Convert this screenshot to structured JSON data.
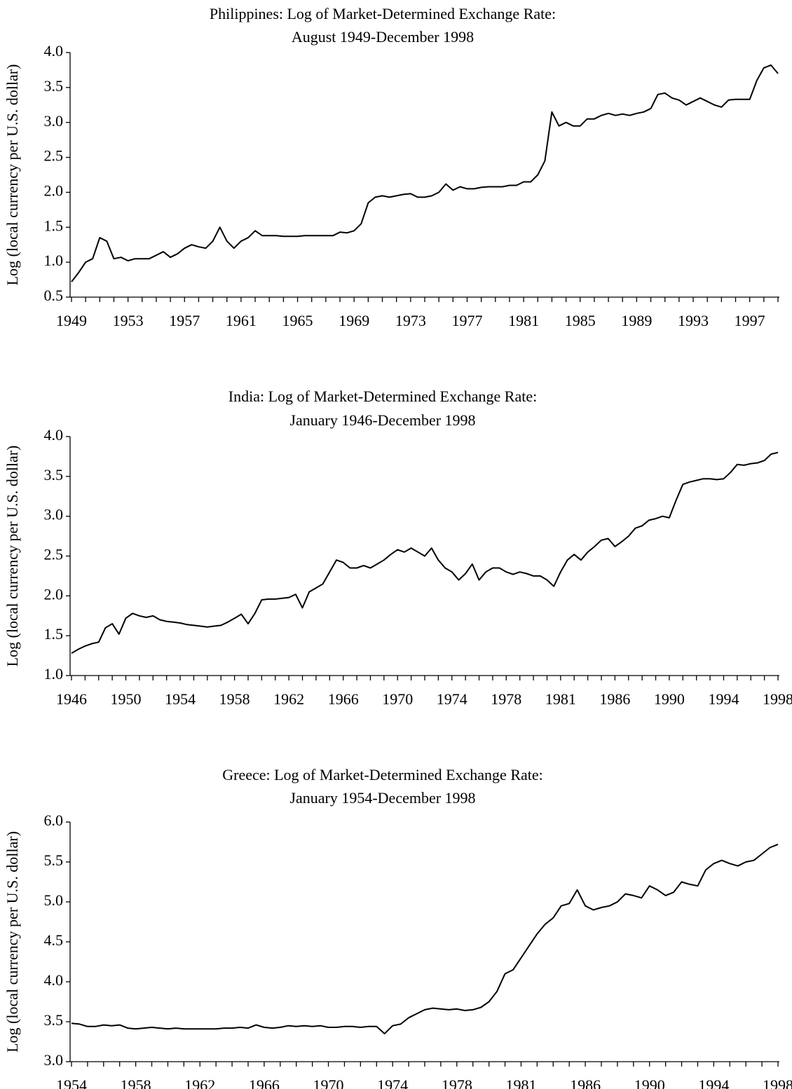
{
  "chart_data": [
    {
      "type": "line",
      "title": "Philippines: Log of Market-Determined Exchange Rate:",
      "subtitle": "August 1949-December 1998",
      "y_label": "Log (local currency per U.S. dollar)",
      "color": "#000000",
      "categories": [
        "1949",
        null,
        null,
        null,
        null,
        null,
        null,
        null,
        "1953",
        null,
        null,
        null,
        null,
        null,
        null,
        null,
        "1957",
        null,
        null,
        null,
        null,
        null,
        null,
        null,
        "1961",
        null,
        null,
        null,
        null,
        null,
        null,
        null,
        "1965",
        null,
        null,
        null,
        null,
        null,
        null,
        null,
        "1969",
        null,
        null,
        null,
        null,
        null,
        null,
        null,
        "1973",
        null,
        null,
        null,
        null,
        null,
        null,
        null,
        "1977",
        null,
        null,
        null,
        null,
        null,
        null,
        null,
        "1981",
        null,
        null,
        null,
        null,
        null,
        null,
        null,
        "1985",
        null,
        null,
        null,
        null,
        null,
        null,
        null,
        "1989",
        null,
        null,
        null,
        null,
        null,
        null,
        null,
        "1993",
        null,
        null,
        null,
        null,
        null,
        null,
        null,
        "1997",
        null,
        null,
        null,
        null
      ],
      "values": [
        0.72,
        0.85,
        1.0,
        1.05,
        1.35,
        1.3,
        1.05,
        1.07,
        1.02,
        1.05,
        1.05,
        1.05,
        1.1,
        1.15,
        1.07,
        1.12,
        1.2,
        1.25,
        1.22,
        1.2,
        1.3,
        1.5,
        1.3,
        1.2,
        1.3,
        1.35,
        1.45,
        1.38,
        1.38,
        1.38,
        1.37,
        1.37,
        1.37,
        1.38,
        1.38,
        1.38,
        1.38,
        1.38,
        1.43,
        1.42,
        1.45,
        1.55,
        1.85,
        1.93,
        1.95,
        1.93,
        1.95,
        1.97,
        1.98,
        1.93,
        1.93,
        1.95,
        2.0,
        2.12,
        2.03,
        2.08,
        2.05,
        2.05,
        2.07,
        2.08,
        2.08,
        2.08,
        2.1,
        2.1,
        2.15,
        2.15,
        2.25,
        2.45,
        3.15,
        2.95,
        3.0,
        2.95,
        2.95,
        3.05,
        3.05,
        3.1,
        3.13,
        3.1,
        3.12,
        3.1,
        3.13,
        3.15,
        3.2,
        3.4,
        3.42,
        3.35,
        3.32,
        3.25,
        3.3,
        3.35,
        3.3,
        3.25,
        3.22,
        3.32,
        3.33,
        3.33,
        3.33,
        3.6,
        3.78,
        3.82,
        3.7
      ],
      "ylim": [
        0.5,
        4
      ],
      "yticks": [
        0.5,
        {
          "value": 1,
          "label": "1.0"
        },
        1.5,
        {
          "value": 2,
          "label": "2.0"
        },
        2.5,
        {
          "value": 3,
          "label": "3.0"
        },
        3.5,
        {
          "value": 4,
          "label": "4.0"
        }
      ]
    },
    {
      "type": "line",
      "title": "India: Log of Market-Determined Exchange Rate:",
      "subtitle": "January 1946-December 1998",
      "y_label": "Log (local currency per U.S. dollar)",
      "color": "#000000",
      "categories": [
        "1946",
        null,
        null,
        null,
        null,
        null,
        null,
        null,
        "1950",
        null,
        null,
        null,
        null,
        null,
        null,
        null,
        "1954",
        null,
        null,
        null,
        null,
        null,
        null,
        null,
        "1958",
        null,
        null,
        null,
        null,
        null,
        null,
        null,
        "1962",
        null,
        null,
        null,
        null,
        null,
        null,
        null,
        "1966",
        null,
        null,
        null,
        null,
        null,
        null,
        null,
        "1970",
        null,
        null,
        null,
        null,
        null,
        null,
        null,
        "1974",
        null,
        null,
        null,
        null,
        null,
        null,
        null,
        "1978",
        null,
        null,
        null,
        null,
        null,
        null,
        null,
        "1981",
        null,
        null,
        null,
        null,
        null,
        null,
        null,
        "1986",
        null,
        null,
        null,
        null,
        null,
        null,
        null,
        "1990",
        null,
        null,
        null,
        null,
        null,
        null,
        null,
        "1994",
        null,
        null,
        null,
        null,
        null,
        null,
        null,
        "1998"
      ],
      "values": [
        1.28,
        1.33,
        1.37,
        1.4,
        1.42,
        1.6,
        1.65,
        1.52,
        1.72,
        1.78,
        1.75,
        1.73,
        1.75,
        1.7,
        1.68,
        1.67,
        1.66,
        1.64,
        1.63,
        1.62,
        1.61,
        1.62,
        1.63,
        1.67,
        1.72,
        1.77,
        1.65,
        1.78,
        1.95,
        1.96,
        1.96,
        1.97,
        1.98,
        2.02,
        1.85,
        2.05,
        2.1,
        2.15,
        2.3,
        2.45,
        2.42,
        2.35,
        2.35,
        2.38,
        2.35,
        2.4,
        2.45,
        2.52,
        2.58,
        2.55,
        2.6,
        2.55,
        2.5,
        2.6,
        2.45,
        2.35,
        2.3,
        2.2,
        2.28,
        2.4,
        2.2,
        2.3,
        2.35,
        2.35,
        2.3,
        2.27,
        2.3,
        2.28,
        2.25,
        2.25,
        2.2,
        2.12,
        2.3,
        2.45,
        2.52,
        2.45,
        2.55,
        2.62,
        2.7,
        2.72,
        2.62,
        2.68,
        2.75,
        2.85,
        2.88,
        2.95,
        2.97,
        3.0,
        2.98,
        3.2,
        3.4,
        3.43,
        3.45,
        3.47,
        3.47,
        3.46,
        3.47,
        3.55,
        3.65,
        3.64,
        3.66,
        3.67,
        3.7,
        3.78,
        3.8
      ],
      "ylim": [
        1,
        4
      ],
      "yticks": [
        {
          "value": 1,
          "label": "1.0"
        },
        1.5,
        {
          "value": 2,
          "label": "2.0"
        },
        2.5,
        {
          "value": 3,
          "label": "3.0"
        },
        3.5,
        {
          "value": 4,
          "label": "4.0"
        }
      ]
    },
    {
      "type": "line",
      "title": "Greece: Log of Market-Determined Exchange Rate:",
      "subtitle": "January 1954-December 1998",
      "y_label": "Log (local currency per U.S. dollar)",
      "color": "#000000",
      "categories": [
        "1954",
        null,
        null,
        null,
        null,
        null,
        null,
        null,
        "1958",
        null,
        null,
        null,
        null,
        null,
        null,
        null,
        "1962",
        null,
        null,
        null,
        null,
        null,
        null,
        null,
        "1966",
        null,
        null,
        null,
        null,
        null,
        null,
        null,
        "1970",
        null,
        null,
        null,
        null,
        null,
        null,
        null,
        "1974",
        null,
        null,
        null,
        null,
        null,
        null,
        null,
        "1978",
        null,
        null,
        null,
        null,
        null,
        null,
        null,
        "1981",
        null,
        null,
        null,
        null,
        null,
        null,
        null,
        "1986",
        null,
        null,
        null,
        null,
        null,
        null,
        null,
        "1990",
        null,
        null,
        null,
        null,
        null,
        null,
        null,
        "1994",
        null,
        null,
        null,
        null,
        null,
        null,
        null,
        "1998"
      ],
      "values": [
        3.48,
        3.47,
        3.44,
        3.44,
        3.46,
        3.45,
        3.46,
        3.42,
        3.41,
        3.42,
        3.43,
        3.42,
        3.41,
        3.42,
        3.41,
        3.41,
        3.41,
        3.41,
        3.41,
        3.42,
        3.42,
        3.43,
        3.42,
        3.46,
        3.43,
        3.42,
        3.43,
        3.45,
        3.44,
        3.45,
        3.44,
        3.45,
        3.43,
        3.43,
        3.44,
        3.44,
        3.43,
        3.44,
        3.44,
        3.35,
        3.45,
        3.47,
        3.55,
        3.6,
        3.65,
        3.67,
        3.66,
        3.65,
        3.66,
        3.64,
        3.65,
        3.68,
        3.75,
        3.88,
        4.1,
        4.15,
        4.3,
        4.45,
        4.6,
        4.72,
        4.8,
        4.95,
        4.98,
        5.15,
        4.95,
        4.9,
        4.93,
        4.95,
        5.0,
        5.1,
        5.08,
        5.05,
        5.2,
        5.15,
        5.08,
        5.12,
        5.25,
        5.22,
        5.2,
        5.4,
        5.48,
        5.52,
        5.48,
        5.45,
        5.5,
        5.52,
        5.6,
        5.68,
        5.72
      ],
      "ylim": [
        3,
        6
      ],
      "yticks": [
        {
          "value": 3,
          "label": "3.0"
        },
        3.5,
        {
          "value": 4,
          "label": "4.0"
        },
        4.5,
        {
          "value": 5,
          "label": "5.0"
        },
        5.5,
        {
          "value": 6,
          "label": "6.0"
        }
      ]
    }
  ]
}
